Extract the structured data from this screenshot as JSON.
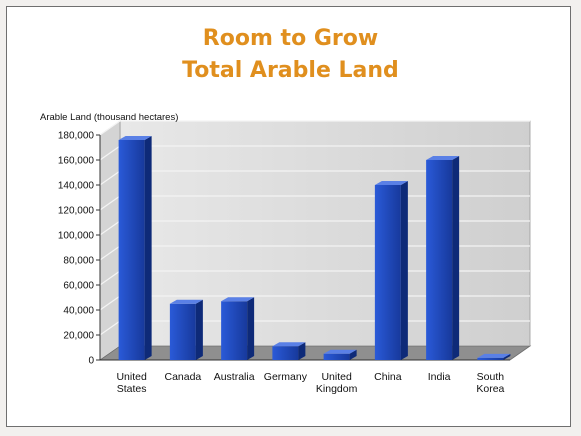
{
  "chart_data": {
    "type": "bar",
    "title": [
      "Room to Grow",
      "Total Arable Land"
    ],
    "ylabel": "Arable Land (thousand hectares)",
    "xlabel": "",
    "ylim": [
      0,
      180000
    ],
    "yticks": [
      "0",
      "20,000",
      "40,000",
      "60,000",
      "80,000",
      "100,000",
      "120,000",
      "140,000",
      "160,000",
      "180,000"
    ],
    "categories": [
      [
        "United",
        "States"
      ],
      [
        "Canada"
      ],
      [
        "Australia"
      ],
      [
        "Germany"
      ],
      [
        "United",
        "Kingdom"
      ],
      [
        "China"
      ],
      [
        "India"
      ],
      [
        "South",
        "Korea"
      ]
    ],
    "values": [
      176000,
      45000,
      47000,
      11000,
      5000,
      140000,
      160000,
      1700
    ],
    "colors": {
      "bar_front": "#1f47b8",
      "bar_side": "#0e2a78",
      "bar_top": "#5a80e6",
      "wall": "#dcdcdc",
      "floor": "#8f8f8f",
      "title": "#e08f1e"
    },
    "grid": true,
    "style": "3d-column"
  }
}
